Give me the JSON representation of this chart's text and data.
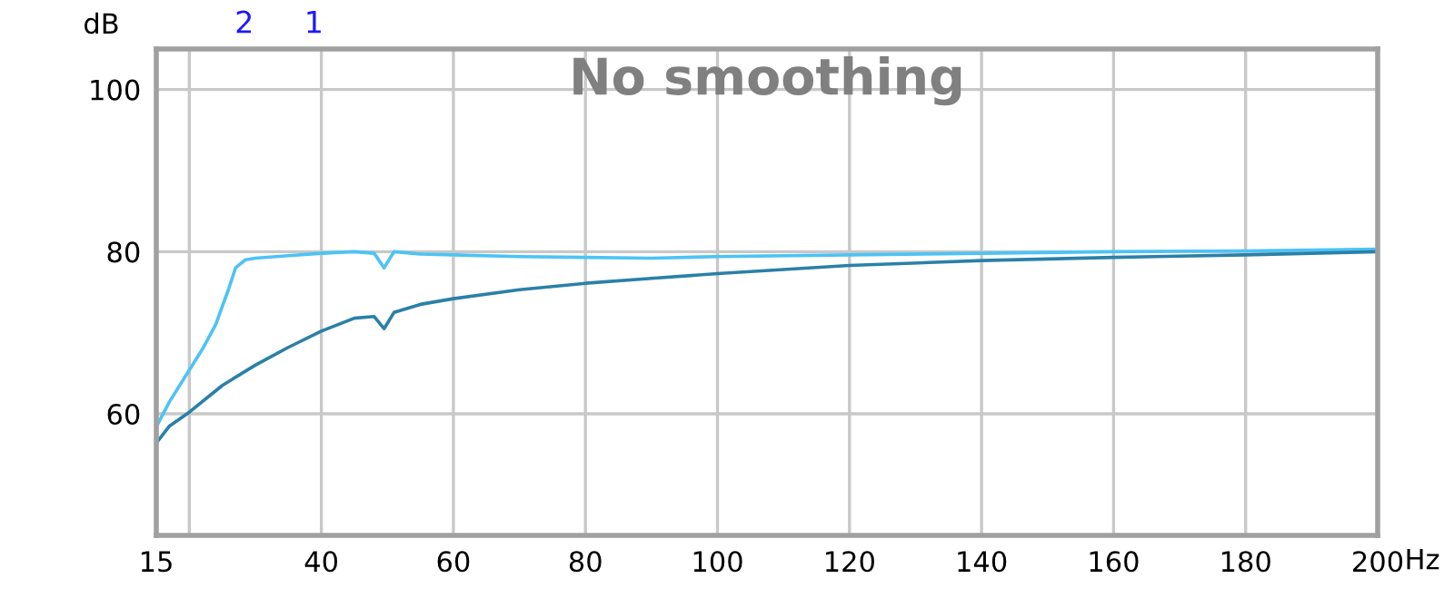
{
  "chart_data": {
    "type": "line",
    "title": "No smoothing",
    "xlabel": "Hz",
    "ylabel": "dB",
    "xlim": [
      15,
      200
    ],
    "ylim": [
      45,
      105
    ],
    "xticks": [
      15,
      {
        "value": 20,
        "label": null
      },
      40,
      60,
      80,
      100,
      120,
      140,
      160,
      180,
      200
    ],
    "yticks": [
      60,
      80,
      100
    ],
    "grid": true,
    "legend": false,
    "marker": "none",
    "line_style": "solid",
    "annotations": [
      "2",
      "1"
    ],
    "series": [
      {
        "color": "#4cc3f5",
        "x": [
          15,
          17,
          20,
          22,
          24,
          26,
          27,
          28.5,
          30,
          35,
          40,
          45,
          48,
          49.5,
          51,
          55,
          60,
          70,
          80,
          90,
          100,
          120,
          140,
          160,
          180,
          200
        ],
        "values": [
          58.4,
          61.5,
          65.4,
          68,
          71,
          75.5,
          78,
          79,
          79.2,
          79.5,
          79.8,
          80,
          79.8,
          78,
          80,
          79.7,
          79.6,
          79.4,
          79.3,
          79.2,
          79.4,
          79.6,
          79.8,
          80,
          80.1,
          80.3
        ]
      },
      {
        "color": "#2a80a8",
        "x": [
          15,
          17,
          20,
          25,
          30,
          35,
          40,
          45,
          48,
          49.5,
          51,
          55,
          60,
          70,
          80,
          90,
          100,
          120,
          140,
          160,
          180,
          200
        ],
        "values": [
          56.4,
          58.5,
          60.2,
          63.5,
          66,
          68.2,
          70.2,
          71.8,
          72,
          70.5,
          72.5,
          73.5,
          74.2,
          75.3,
          76.1,
          76.7,
          77.3,
          78.3,
          78.9,
          79.3,
          79.6,
          80
        ]
      }
    ]
  }
}
